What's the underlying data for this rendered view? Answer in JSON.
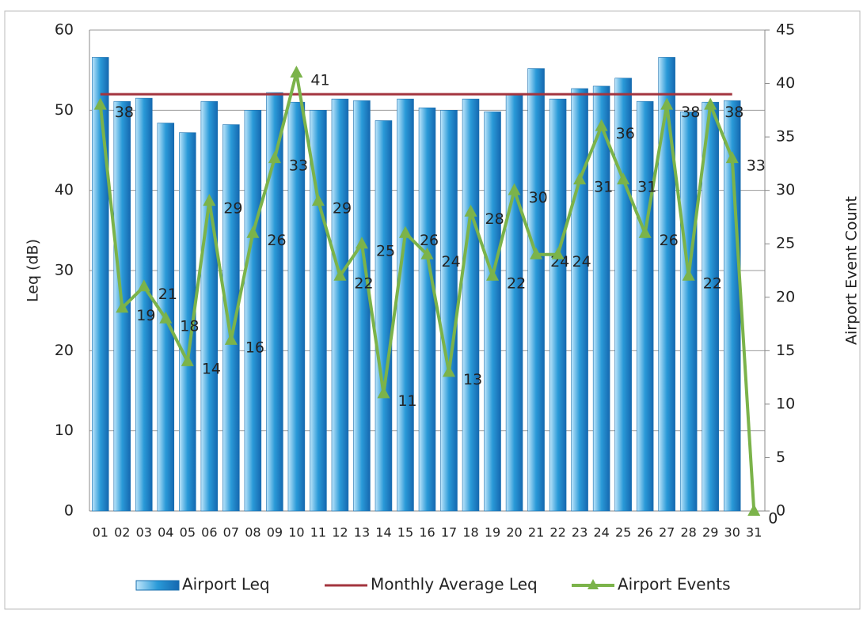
{
  "chart_data": {
    "type": "bar-line",
    "categories": [
      "01",
      "02",
      "03",
      "04",
      "05",
      "06",
      "07",
      "08",
      "09",
      "10",
      "11",
      "12",
      "13",
      "14",
      "15",
      "16",
      "17",
      "18",
      "19",
      "20",
      "21",
      "22",
      "23",
      "24",
      "25",
      "26",
      "27",
      "28",
      "29",
      "30",
      "31"
    ],
    "series": [
      {
        "name": "Airport Leq",
        "type": "bar",
        "color": "#2a9ad8",
        "values": [
          56.6,
          51.1,
          51.5,
          48.4,
          47.2,
          51.1,
          48.2,
          50,
          52.2,
          51,
          50,
          51.4,
          51.2,
          48.7,
          51.4,
          50.3,
          50,
          51.4,
          49.8,
          51.9,
          55.2,
          51.4,
          52.7,
          53,
          54,
          51.1,
          56.6,
          49.8,
          51,
          51.2,
          null
        ]
      },
      {
        "name": "Monthly Average Leq",
        "type": "line",
        "color": "#a3343e",
        "values": [
          52,
          52,
          52,
          52,
          52,
          52,
          52,
          52,
          52,
          52,
          52,
          52,
          52,
          52,
          52,
          52,
          52,
          52,
          52,
          52,
          52,
          52,
          52,
          52,
          52,
          52,
          52,
          52,
          52,
          52,
          null
        ]
      },
      {
        "name": "Airport Events",
        "type": "line-marker",
        "axis": "y2",
        "color": "#7bb34a",
        "values": [
          38,
          19,
          21,
          18,
          14,
          29,
          16,
          26,
          33,
          41,
          29,
          22,
          25,
          11,
          26,
          24,
          13,
          28,
          22,
          30,
          24,
          24,
          31,
          36,
          31,
          26,
          38,
          22,
          38,
          33,
          0
        ]
      }
    ],
    "y_label": "Leq (dB)",
    "y2_label": "Airport Event Count",
    "ylim": [
      0,
      60
    ],
    "yticks": [
      0,
      10,
      20,
      30,
      40,
      50,
      60
    ],
    "y2lim": [
      0,
      45
    ],
    "y2ticks": [
      0,
      5,
      10,
      15,
      20,
      25,
      30,
      35,
      40,
      45
    ],
    "grid": true,
    "legend": "bottom"
  }
}
